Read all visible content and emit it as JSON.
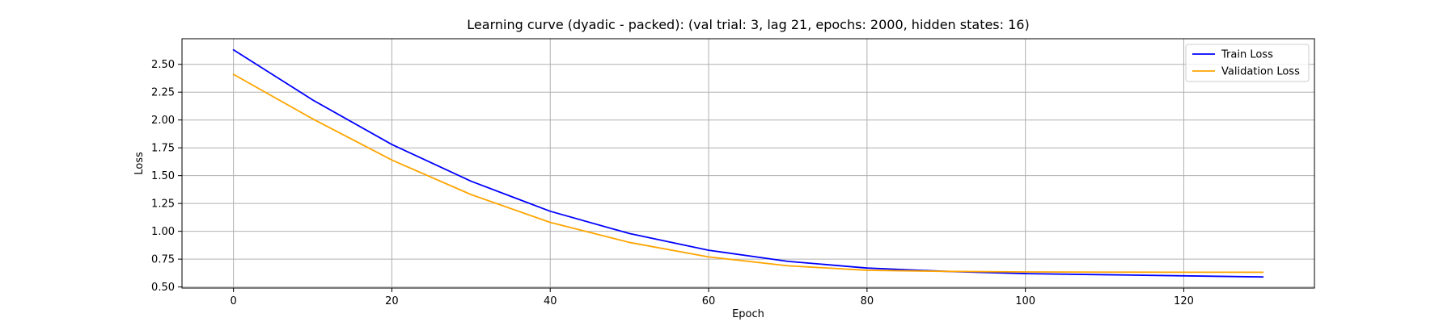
{
  "chart_data": {
    "type": "line",
    "title": "Learning curve (dyadic - packed): (val trial: 3, lag 21, epochs: 2000, hidden states: 16)",
    "xlabel": "Epoch",
    "ylabel": "Loss",
    "xlim": [
      -6.5,
      136.5
    ],
    "ylim": [
      0.49,
      2.73
    ],
    "xticks": [
      0,
      20,
      40,
      60,
      80,
      100,
      120
    ],
    "yticks": [
      0.5,
      0.75,
      1.0,
      1.25,
      1.5,
      1.75,
      2.0,
      2.25,
      2.5
    ],
    "ytick_labels": [
      "0.50",
      "0.75",
      "1.00",
      "1.25",
      "1.50",
      "1.75",
      "2.00",
      "2.25",
      "2.50"
    ],
    "grid": true,
    "legend_position": "top-right",
    "series": [
      {
        "name": "Train Loss",
        "color": "#0000ff",
        "x": [
          0,
          10,
          20,
          30,
          40,
          50,
          60,
          70,
          80,
          90,
          100,
          110,
          120,
          130
        ],
        "values": [
          2.63,
          2.18,
          1.78,
          1.45,
          1.18,
          0.98,
          0.83,
          0.73,
          0.67,
          0.64,
          0.62,
          0.61,
          0.6,
          0.59
        ]
      },
      {
        "name": "Validation Loss",
        "color": "#ffa500",
        "x": [
          0,
          10,
          20,
          30,
          40,
          50,
          60,
          70,
          80,
          90,
          100,
          110,
          120,
          130
        ],
        "values": [
          2.41,
          2.01,
          1.64,
          1.33,
          1.08,
          0.9,
          0.77,
          0.69,
          0.65,
          0.64,
          0.635,
          0.633,
          0.632,
          0.632
        ]
      }
    ]
  }
}
